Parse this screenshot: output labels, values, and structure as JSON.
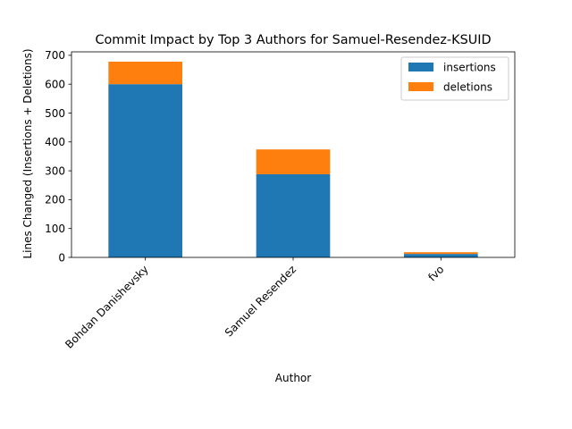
{
  "chart_data": {
    "type": "bar",
    "stacked": true,
    "title": "Commit Impact by Top 3 Authors for Samuel-Resendez-KSUID",
    "xlabel": "Author",
    "ylabel": "Lines Changed (Insertions + Deletions)",
    "categories": [
      "Bohdan Danishevsky",
      "Samuel Resendez",
      "fvo"
    ],
    "series": [
      {
        "name": "insertions",
        "color": "#1f77b4",
        "values": [
          600,
          288,
          12
        ]
      },
      {
        "name": "deletions",
        "color": "#ff7f0e",
        "values": [
          78,
          86,
          6
        ]
      }
    ],
    "ylim": [
      0,
      712
    ],
    "yticks": [
      0,
      100,
      200,
      300,
      400,
      500,
      600,
      700
    ],
    "grid": false,
    "legend_position": "top-right"
  }
}
